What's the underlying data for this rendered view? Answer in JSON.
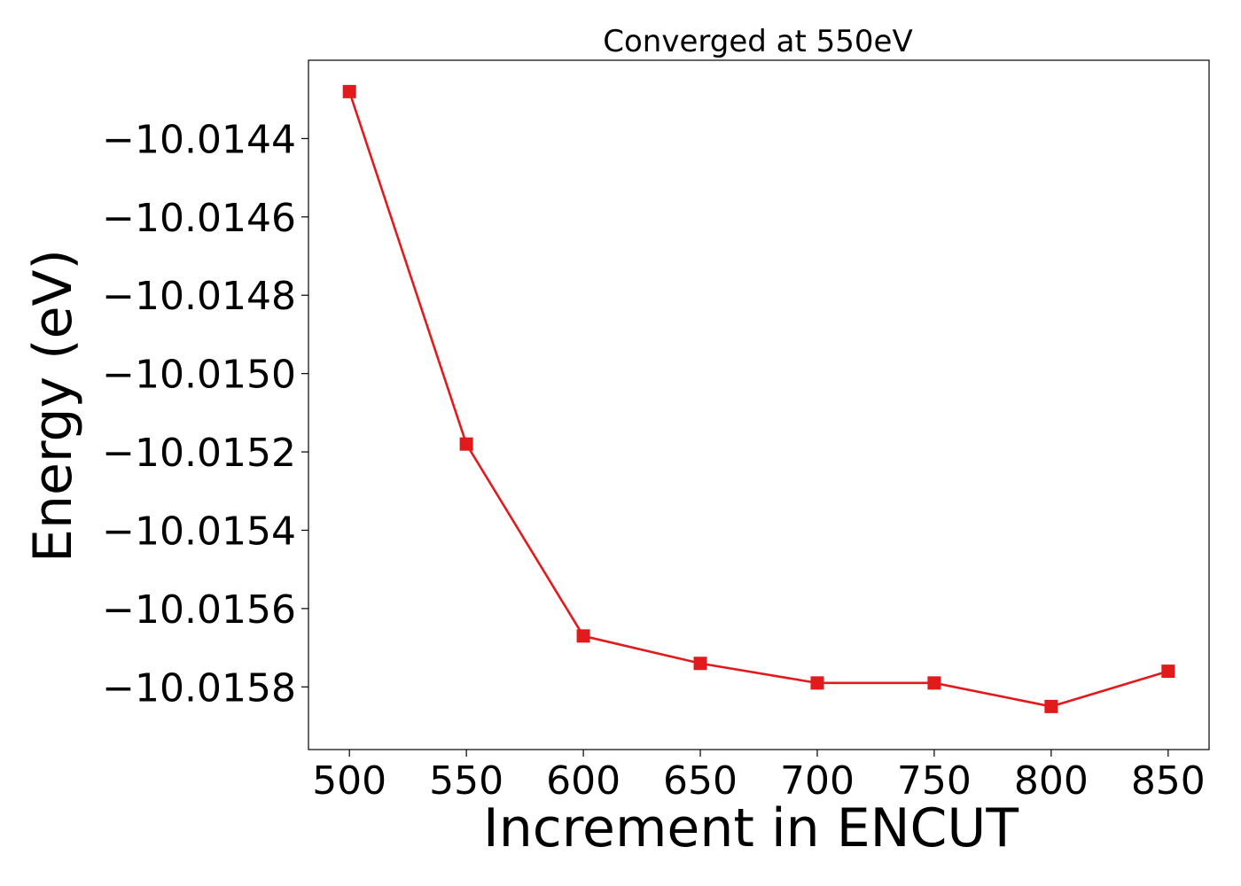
{
  "chart_data": {
    "type": "line",
    "title": "Converged at 550eV",
    "xlabel": "Increment in ENCUT",
    "ylabel": "Energy (eV)",
    "x": [
      500,
      550,
      600,
      650,
      700,
      750,
      800,
      850
    ],
    "series": [
      {
        "values": [
          -10.01428,
          -10.01518,
          -10.01567,
          -10.01574,
          -10.01579,
          -10.01579,
          -10.01585,
          -10.01576
        ],
        "color": "#e31a1c",
        "marker": "square"
      }
    ],
    "xticks": [
      500,
      550,
      600,
      650,
      700,
      750,
      800,
      850
    ],
    "xtick_labels": [
      "500",
      "550",
      "600",
      "650",
      "700",
      "750",
      "800",
      "850"
    ],
    "yticks": [
      -10.0144,
      -10.0146,
      -10.0148,
      -10.015,
      -10.0152,
      -10.0154,
      -10.0156,
      -10.0158
    ],
    "ytick_labels": [
      "−10.0144",
      "−10.0146",
      "−10.0148",
      "−10.0150",
      "−10.0152",
      "−10.0154",
      "−10.0156",
      "−10.0158"
    ],
    "xlim": [
      482.5,
      867.5
    ],
    "ylim": [
      -10.01596,
      -10.0142
    ],
    "grid": false,
    "legend": "none"
  }
}
